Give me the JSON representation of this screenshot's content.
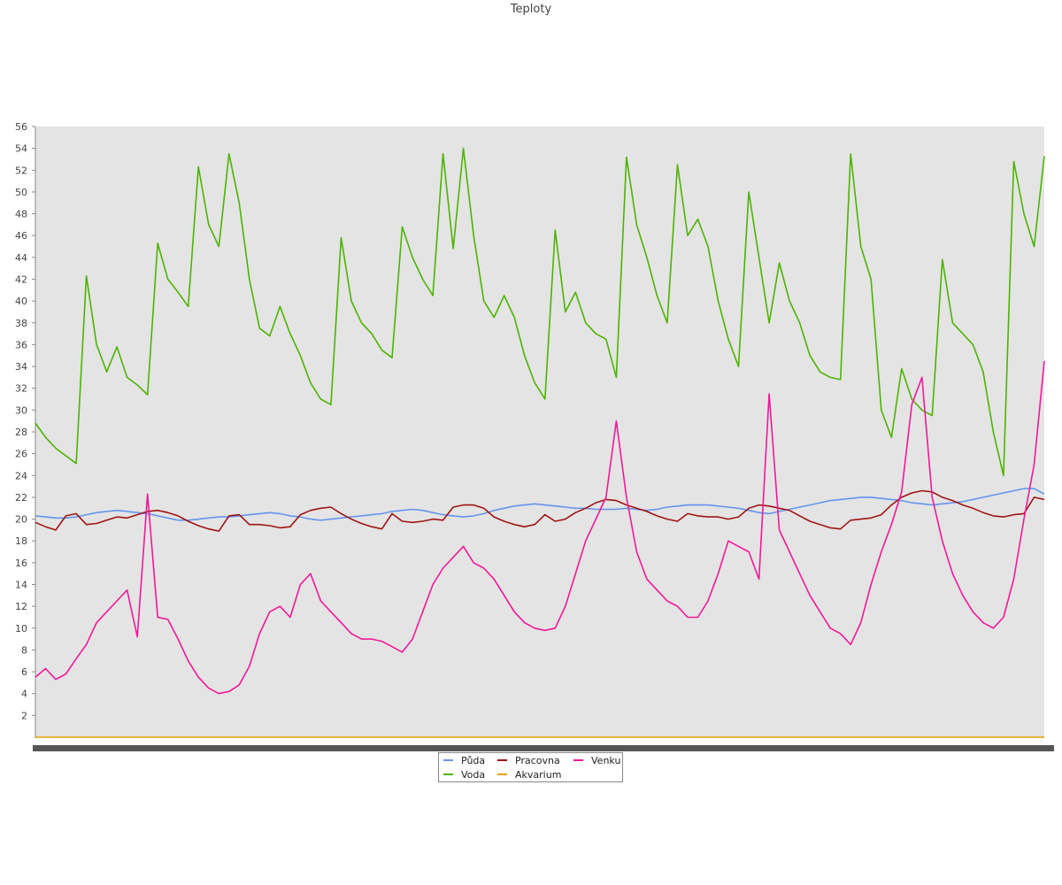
{
  "chart_data": {
    "type": "line",
    "title": "Teploty",
    "xlabel": "",
    "ylabel": "",
    "ylim": [
      0,
      56
    ],
    "yticks": [
      2,
      4,
      6,
      8,
      10,
      12,
      14,
      16,
      18,
      20,
      22,
      24,
      26,
      28,
      30,
      32,
      34,
      36,
      38,
      40,
      42,
      44,
      46,
      48,
      50,
      52,
      54,
      56
    ],
    "x_count": 100,
    "grid": false,
    "legend_position": "bottom-center",
    "series": [
      {
        "name": "Půda",
        "color": "#6495ED",
        "values": [
          20.3,
          20.2,
          20.1,
          20.1,
          20.2,
          20.4,
          20.6,
          20.7,
          20.8,
          20.7,
          20.6,
          20.5,
          20.3,
          20.1,
          19.9,
          19.9,
          20.0,
          20.1,
          20.2,
          20.2,
          20.3,
          20.4,
          20.5,
          20.6,
          20.5,
          20.3,
          20.2,
          20.0,
          19.9,
          20.0,
          20.1,
          20.2,
          20.3,
          20.4,
          20.5,
          20.7,
          20.8,
          20.9,
          20.8,
          20.6,
          20.4,
          20.3,
          20.2,
          20.3,
          20.5,
          20.8,
          21.0,
          21.2,
          21.3,
          21.4,
          21.3,
          21.2,
          21.1,
          21.0,
          21.0,
          20.9,
          20.9,
          20.9,
          21.0,
          20.9,
          20.8,
          20.9,
          21.1,
          21.2,
          21.3,
          21.3,
          21.3,
          21.2,
          21.1,
          21.0,
          20.8,
          20.6,
          20.5,
          20.7,
          20.9,
          21.1,
          21.3,
          21.5,
          21.7,
          21.8,
          21.9,
          22.0,
          22.0,
          21.9,
          21.8,
          21.7,
          21.5,
          21.4,
          21.3,
          21.4,
          21.5,
          21.6,
          21.8,
          22.0,
          22.2,
          22.4,
          22.6,
          22.8,
          22.8,
          22.3
        ]
      },
      {
        "name": "Voda",
        "color": "#4CB400",
        "values": [
          28.8,
          27.5,
          26.5,
          25.8,
          25.1,
          42.3,
          36.0,
          33.5,
          35.8,
          33.0,
          32.3,
          31.4,
          45.3,
          42.0,
          40.8,
          39.5,
          52.3,
          47.0,
          45.0,
          53.5,
          49.0,
          42.0,
          37.5,
          36.8,
          39.5,
          37.0,
          35.0,
          32.5,
          31.0,
          30.5,
          45.8,
          40.0,
          38.0,
          37.0,
          35.5,
          34.8,
          46.8,
          44.0,
          42.0,
          40.5,
          53.5,
          44.8,
          54.0,
          46.0,
          40.0,
          38.5,
          40.5,
          38.5,
          35.0,
          32.5,
          31.0,
          46.5,
          39.0,
          40.8,
          38.0,
          37.0,
          36.5,
          33.0,
          53.2,
          47.0,
          44.0,
          40.5,
          38.0,
          52.5,
          46.0,
          47.5,
          45.0,
          40.0,
          36.5,
          34.0,
          50.0,
          44.0,
          38.0,
          43.5,
          40.0,
          38.0,
          35.0,
          33.5,
          33.0,
          32.8,
          53.5,
          45.0,
          42.0,
          30.0,
          27.5,
          33.8,
          31.0,
          30.0,
          29.5,
          43.8,
          38.0,
          37.0,
          36.0,
          33.5,
          28.0,
          24.0,
          52.8,
          48.0,
          45.0,
          53.3
        ]
      },
      {
        "name": "Pracovna",
        "color": "#A01414",
        "values": [
          19.7,
          19.3,
          19.0,
          20.3,
          20.5,
          19.5,
          19.6,
          19.9,
          20.2,
          20.1,
          20.4,
          20.7,
          20.8,
          20.6,
          20.3,
          19.8,
          19.4,
          19.1,
          18.9,
          20.3,
          20.4,
          19.5,
          19.5,
          19.4,
          19.2,
          19.3,
          20.4,
          20.8,
          21.0,
          21.1,
          20.5,
          20.0,
          19.6,
          19.3,
          19.1,
          20.5,
          19.8,
          19.7,
          19.8,
          20.0,
          19.9,
          21.1,
          21.3,
          21.3,
          21.0,
          20.2,
          19.8,
          19.5,
          19.3,
          19.5,
          20.4,
          19.8,
          20.0,
          20.6,
          21.0,
          21.5,
          21.8,
          21.7,
          21.3,
          21.0,
          20.7,
          20.3,
          20.0,
          19.8,
          20.5,
          20.3,
          20.2,
          20.2,
          20.0,
          20.2,
          21.0,
          21.3,
          21.2,
          21.0,
          20.8,
          20.3,
          19.8,
          19.5,
          19.2,
          19.1,
          19.9,
          20.0,
          20.1,
          20.4,
          21.3,
          22.0,
          22.4,
          22.6,
          22.5,
          22.0,
          21.7,
          21.3,
          21.0,
          20.6,
          20.3,
          20.2,
          20.4,
          20.5,
          22.0,
          21.8
        ]
      },
      {
        "name": "Akvarium",
        "color": "#E8A000",
        "values": [
          0,
          0,
          0,
          0,
          0,
          0,
          0,
          0,
          0,
          0,
          0,
          0,
          0,
          0,
          0,
          0,
          0,
          0,
          0,
          0,
          0,
          0,
          0,
          0,
          0,
          0,
          0,
          0,
          0,
          0,
          0,
          0,
          0,
          0,
          0,
          0,
          0,
          0,
          0,
          0,
          0,
          0,
          0,
          0,
          0,
          0,
          0,
          0,
          0,
          0,
          0,
          0,
          0,
          0,
          0,
          0,
          0,
          0,
          0,
          0,
          0,
          0,
          0,
          0,
          0,
          0,
          0,
          0,
          0,
          0,
          0,
          0,
          0,
          0,
          0,
          0,
          0,
          0,
          0,
          0,
          0,
          0,
          0,
          0,
          0,
          0,
          0,
          0,
          0,
          0,
          0,
          0,
          0,
          0,
          0,
          0,
          0,
          0,
          0,
          0
        ]
      },
      {
        "name": "Venku",
        "color": "#F0189A",
        "values": [
          5.5,
          6.3,
          5.3,
          5.8,
          7.2,
          8.5,
          10.5,
          11.5,
          12.5,
          13.5,
          9.2,
          22.3,
          11.0,
          10.8,
          9.0,
          7.0,
          5.5,
          4.5,
          4.0,
          4.2,
          4.8,
          6.5,
          9.5,
          11.5,
          12.0,
          11.0,
          14.0,
          15.0,
          12.5,
          11.5,
          10.5,
          9.5,
          9.0,
          9.0,
          8.8,
          8.3,
          7.8,
          9.0,
          11.5,
          14.0,
          15.5,
          16.5,
          17.5,
          16.0,
          15.5,
          14.5,
          13.0,
          11.5,
          10.5,
          10.0,
          9.8,
          10.0,
          12.0,
          15.0,
          18.0,
          20.0,
          22.0,
          29.0,
          22.0,
          17.0,
          14.5,
          13.5,
          12.5,
          12.0,
          11.0,
          11.0,
          12.5,
          15.0,
          18.0,
          17.5,
          17.0,
          14.5,
          31.5,
          19.0,
          17.0,
          15.0,
          13.0,
          11.5,
          10.0,
          9.5,
          8.5,
          10.5,
          14.0,
          17.0,
          19.5,
          22.5,
          30.5,
          33.0,
          22.0,
          18.0,
          15.0,
          13.0,
          11.5,
          10.5,
          10.0,
          11.0,
          14.5,
          20.0,
          25.0,
          34.5
        ]
      }
    ]
  }
}
